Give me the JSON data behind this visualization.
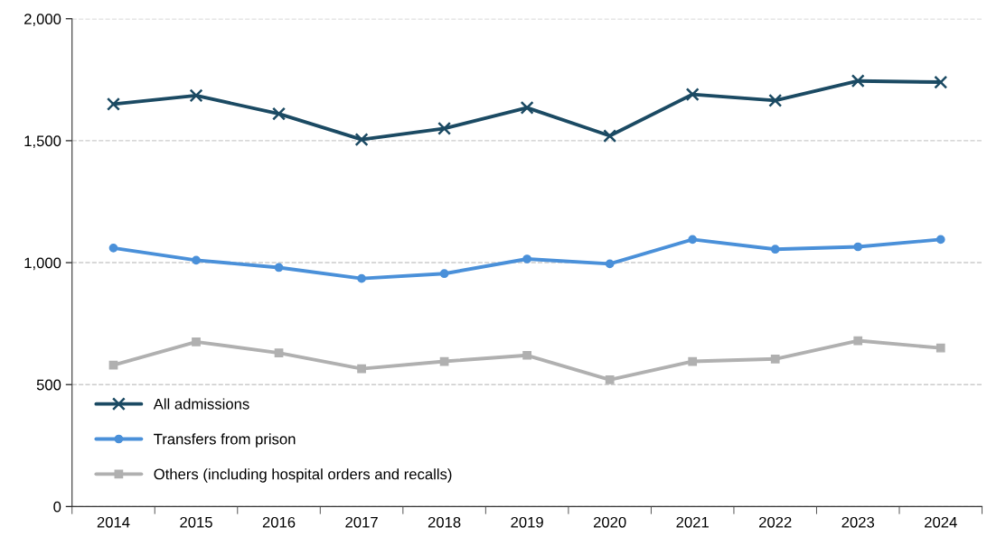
{
  "chart_data": {
    "type": "line",
    "categories": [
      "2014",
      "2015",
      "2016",
      "2017",
      "2018",
      "2019",
      "2020",
      "2021",
      "2022",
      "2023",
      "2024"
    ],
    "series": [
      {
        "name": "All admissions",
        "color": "#1b4a63",
        "marker": "cross",
        "values": [
          1650,
          1685,
          1610,
          1505,
          1550,
          1635,
          1520,
          1690,
          1665,
          1745,
          1740
        ]
      },
      {
        "name": "Transfers from prison",
        "color": "#4a90d9",
        "marker": "circle",
        "values": [
          1060,
          1010,
          980,
          935,
          955,
          1015,
          995,
          1095,
          1055,
          1065,
          1095
        ]
      },
      {
        "name": "Others (including hospital orders and recalls)",
        "color": "#b0b0b0",
        "marker": "square",
        "values": [
          580,
          675,
          630,
          565,
          595,
          620,
          520,
          595,
          605,
          680,
          650
        ]
      }
    ],
    "ylim": [
      0,
      2000
    ],
    "yticks": [
      0,
      {
        "value": 500,
        "label": "500"
      },
      {
        "value": 1000,
        "label": "1,000"
      },
      {
        "value": 1500,
        "label": "1,500"
      },
      {
        "value": 2000,
        "label": "2,000"
      }
    ],
    "grid": "y",
    "legend": "bottom left",
    "line_style": "solid"
  }
}
